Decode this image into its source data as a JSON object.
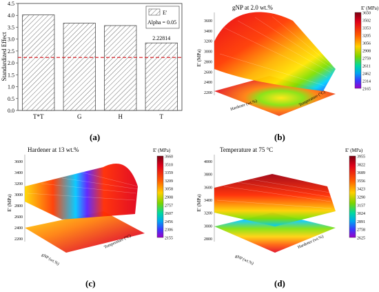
{
  "panels": {
    "a": {
      "label": "(a)"
    },
    "b": {
      "label": "(b)",
      "title": "gNP at 2.0 wt.%",
      "legend_title": "E' (MPa)",
      "zlabel": "E' (MPa)",
      "xlabel": "Hardener (wt.%)",
      "ylabel": "Temperature (°C)",
      "legend_ticks": [
        "3650",
        "3502",
        "3353",
        "3205",
        "3056",
        "2908",
        "2759",
        "2611",
        "2462",
        "2314",
        "2165"
      ],
      "z_ticks": [
        "2200",
        "2400",
        "2600",
        "2800",
        "3000",
        "3200",
        "3400",
        "3600"
      ]
    },
    "c": {
      "label": "(c)",
      "title": "Hardener at 13 wt.%",
      "legend_title": "E' (MPa)",
      "zlabel": "E' (MPa)",
      "xlabel": "gNP (wt.%)",
      "ylabel": "Temperature (°C)",
      "legend_ticks": [
        "3660",
        "3510",
        "3359",
        "3209",
        "3058",
        "2908",
        "2757",
        "2607",
        "2456",
        "2306",
        "2155"
      ],
      "z_ticks": [
        "2200",
        "2400",
        "2600",
        "2800",
        "3000",
        "3200",
        "3400",
        "3600"
      ]
    },
    "d": {
      "label": "(d)",
      "title": "Temperature at 75 °C",
      "legend_title": "E' (MPa)",
      "zlabel": "E' (MPa)",
      "xlabel": "gNP (wt.%)",
      "ylabel": "Hardener (wt.%)",
      "legend_ticks": [
        "3955",
        "3822",
        "3689",
        "3556",
        "3423",
        "3290",
        "3157",
        "3024",
        "2891",
        "2758",
        "2625"
      ],
      "z_ticks": [
        "2800",
        "3000",
        "3200",
        "3400",
        "3600",
        "3800",
        "4000"
      ]
    }
  },
  "chart_data": [
    {
      "type": "bar",
      "categories": [
        "T*T",
        "G",
        "H",
        "T"
      ],
      "values": [
        4.02,
        3.67,
        3.57,
        2.84
      ],
      "ylabel": "Standardized Effect",
      "ylim": [
        0,
        4.5
      ],
      "yticks": [
        "0.0",
        "0.5",
        "1.0",
        "1.5",
        "2.0",
        "2.5",
        "3.0",
        "3.5",
        "4.0",
        "4.5"
      ],
      "reference_line": {
        "value": 2.22814,
        "label": "2.22814",
        "color": "#d9262b"
      },
      "legend": {
        "entry": "E'",
        "note": "Alpha = 0.05",
        "placement": "top-right"
      },
      "bar_fill": "hatched"
    }
  ]
}
